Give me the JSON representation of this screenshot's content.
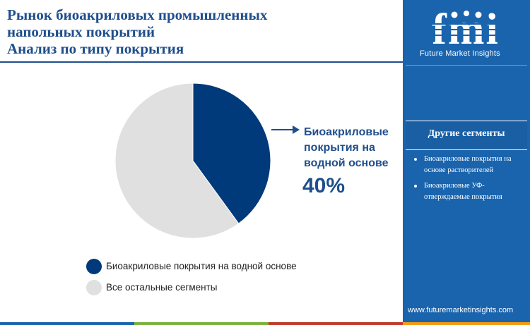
{
  "title_lines": [
    "Рынок биоакриловых промышленных",
    "напольных покрытий",
    "Анализ по типу покрытия"
  ],
  "brand": {
    "logo_letters": "fmi",
    "name": "Future Market Insights",
    "website": "www.futuremarketinsights.com"
  },
  "sidebar": {
    "heading": "Другие сегменты",
    "items": [
      "Биоакриловые покрытия на основе растворителей",
      "Биоакриловые УФ-отверждаемые покрытия"
    ]
  },
  "callout": {
    "label": "Биоакриловые покрытия на водной основе",
    "value": "40%"
  },
  "colors": {
    "primary": "#1f4e8c",
    "sidebar": "#1a64ad",
    "highlight_slice": "#003a7a",
    "rest_slice": "#e0e0e0",
    "bottom_bar": [
      "#1a64ad",
      "#7bb13c",
      "#c0392b",
      "#f39c12",
      "#8e44ad"
    ]
  },
  "chart_data": {
    "type": "pie",
    "title": "Анализ по типу покрытия",
    "slices": [
      {
        "label": "Биоакриловые покрытия на водной основе",
        "value": 40,
        "color": "#003a7a"
      },
      {
        "label": "Все остальные сегменты",
        "value": 60,
        "color": "#e0e0e0"
      }
    ],
    "legend_position": "bottom"
  }
}
